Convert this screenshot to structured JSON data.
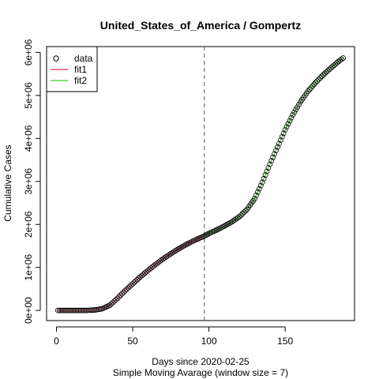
{
  "chart_data": {
    "type": "line",
    "title": "United_States_of_America / Gompertz",
    "xlabel": "Days since 2020-02-25",
    "xlabel2": "Simple Moving Avarage (window size = 7)",
    "ylabel": "Cumulative Cases",
    "xlim": [
      1,
      188
    ],
    "ylim": [
      0,
      5900000
    ],
    "xticks": [
      0,
      50,
      100,
      150
    ],
    "xtick_labels": [
      "0",
      "50",
      "100",
      "150"
    ],
    "yticks": [
      0,
      1000000,
      2000000,
      3000000,
      4000000,
      5000000,
      6000000
    ],
    "ytick_labels": [
      "0e+00",
      "1e+06",
      "2e+06",
      "3e+06",
      "4e+06",
      "5e+06",
      "6e+06"
    ],
    "vline_x": 97,
    "legend": {
      "placement": "top-left",
      "entries": [
        "data",
        "fit1",
        "fit2"
      ]
    },
    "data_points": {
      "x": [
        1,
        5,
        10,
        15,
        20,
        25,
        30,
        35,
        40,
        45,
        50,
        55,
        60,
        65,
        70,
        75,
        80,
        85,
        90,
        95,
        97,
        100,
        105,
        110,
        115,
        120,
        125,
        130,
        135,
        140,
        145,
        150,
        155,
        160,
        165,
        170,
        175,
        180,
        185,
        188
      ],
      "y": [
        0,
        0,
        0,
        0,
        0,
        10000,
        40000,
        120000,
        280000,
        460000,
        620000,
        780000,
        930000,
        1070000,
        1200000,
        1320000,
        1430000,
        1530000,
        1620000,
        1700000,
        1730000,
        1790000,
        1870000,
        1960000,
        2060000,
        2180000,
        2350000,
        2600000,
        2980000,
        3400000,
        3800000,
        4200000,
        4550000,
        4850000,
        5100000,
        5300000,
        5480000,
        5640000,
        5790000,
        5870000
      ]
    },
    "series": [
      {
        "name": "fit1",
        "color": "#DF536B",
        "x": [
          1,
          5,
          10,
          15,
          20,
          25,
          30,
          35,
          40,
          45,
          50,
          55,
          60,
          65,
          70,
          75,
          80,
          85,
          90,
          95,
          97
        ],
        "y": [
          0,
          0,
          0,
          0,
          0,
          10000,
          40000,
          120000,
          280000,
          460000,
          620000,
          780000,
          930000,
          1070000,
          1200000,
          1320000,
          1430000,
          1530000,
          1620000,
          1700000,
          1730000
        ]
      },
      {
        "name": "fit2",
        "color": "#61D04F",
        "x": [
          97,
          100,
          105,
          110,
          115,
          120,
          125,
          130,
          135,
          140,
          145,
          150,
          155,
          160,
          165,
          170,
          175,
          180,
          185,
          188
        ],
        "y": [
          1730000,
          1790000,
          1860000,
          1950000,
          2050000,
          2180000,
          2350000,
          2600000,
          2980000,
          3400000,
          3800000,
          4200000,
          4550000,
          4850000,
          5100000,
          5300000,
          5480000,
          5640000,
          5790000,
          5870000
        ]
      }
    ]
  }
}
